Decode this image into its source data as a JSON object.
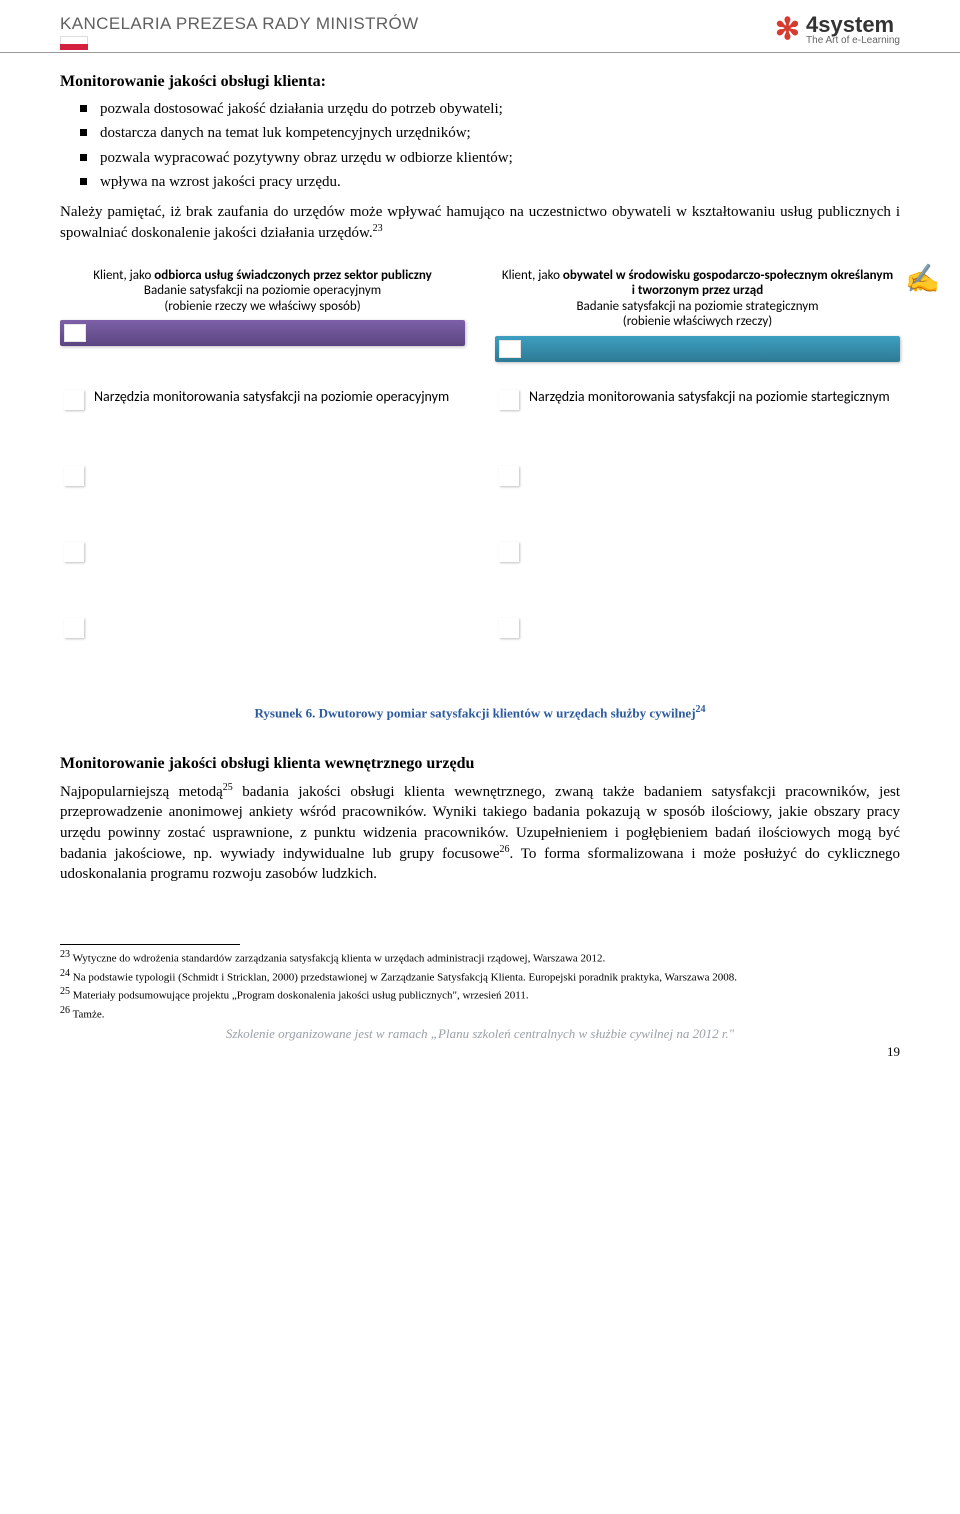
{
  "header": {
    "left": "KANCELARIA PREZESA RADY MINISTRÓW",
    "logo_main": "4system",
    "logo_sub": "The Art of e-Learning"
  },
  "title1": "Monitorowanie jakości obsługi klienta:",
  "bullets": [
    "pozwala dostosować jakość działania urzędu do potrzeb obywateli;",
    "dostarcza danych na temat luk kompetencyjnych urzędników;",
    "pozwala wypracować pozytywny obraz urzędu w odbiorze klientów;",
    "wpływa na wzrost jakości pracy urzędu."
  ],
  "para1": "Należy pamiętać, iż brak zaufania do urzędów może wpływać hamująco na uczestnictwo obywateli w kształtowaniu usług publicznych i spowalniać doskonalenie jakości działania urzędów.",
  "sup1": "23",
  "diagram": {
    "left_card": {
      "line1": "Klient, jako ",
      "bold1": "odbiorca usług świadczonych przez sektor publiczny",
      "line2": "Badanie satysfakcji na poziomie operacyjnym",
      "line3": "(robienie rzeczy we właściwy sposób)",
      "bar_color": "#7e60a8",
      "bar_border": "#5a4680"
    },
    "right_card": {
      "line1": "Klient, jako ",
      "bold1": "obywatel w środowisku gospodarczo-społecznym określanym i tworzonym przez urząd",
      "line2": "Badanie satysfakcji na poziomie strategicznym",
      "line3": "(robienie właściwych rzeczy)",
      "bar_color": "#3d9fc1",
      "bar_border": "#2d7a94"
    },
    "tool_left": "Narzędzia monitorowania satysfakcji na poziomie operacyjnym",
    "tool_right": "Narzędzia monitorowania satysfakcji na poziomie startegicznym",
    "empty_rows": 3
  },
  "caption": "Rysunek 6. Dwutorowy pomiar satysfakcji klientów w urzędach służby cywilnej",
  "caption_sup": "24",
  "title2": "Monitorowanie jakości obsługi klienta wewnętrznego urzędu",
  "para2_a": "Najpopularniejszą metodą",
  "sup25": "25",
  "para2_b": " badania jakości obsługi klienta wewnętrznego, zwaną także badaniem satysfakcji pracowników, jest przeprowadzenie anonimowej ankiety wśród pracowników. Wyniki takiego badania pokazują w sposób ilościowy, jakie obszary pracy urzędu powinny zostać usprawnione, z punktu widzenia pracowników. Uzupełnieniem i pogłębieniem badań ilościowych mogą być badania jakościowe, np. wywiady indywidualne lub grupy focusowe",
  "sup26": "26",
  "para2_c": ". To forma sformalizowana i może posłużyć do cyklicznego udoskonalania programu rozwoju zasobów ludzkich.",
  "footnotes": {
    "f23": "Wytyczne do wdrożenia standardów zarządzania satysfakcją klienta w urzędach administracji rządowej, Warszawa 2012.",
    "f24": "Na podstawie typologii (Schmidt i Stricklan, 2000) przedstawionej w Zarządzanie Satysfakcją Klienta. Europejski poradnik praktyka, Warszawa 2008.",
    "f25": "Materiały podsumowujące projektu „Program doskonalenia jakości usług publicznych\", wrzesień 2011.",
    "f26": "Tamże."
  },
  "footer": "Szkolenie organizowane jest w ramach „Planu szkoleń centralnych w służbie cywilnej na 2012 r.\"",
  "page_number": "19"
}
